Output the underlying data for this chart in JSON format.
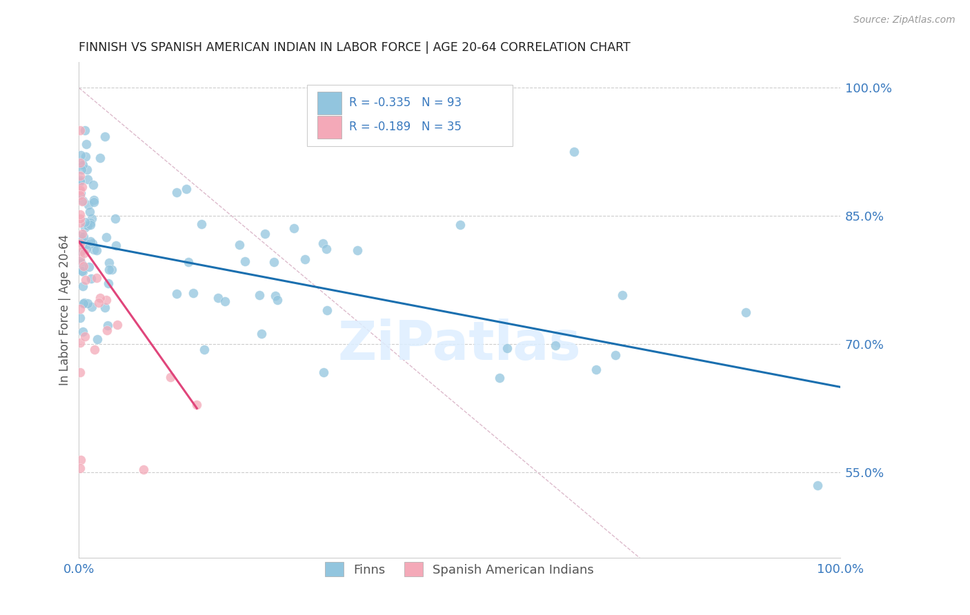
{
  "title": "FINNISH VS SPANISH AMERICAN INDIAN IN LABOR FORCE | AGE 20-64 CORRELATION CHART",
  "source": "Source: ZipAtlas.com",
  "ylabel": "In Labor Force | Age 20-64",
  "ytick_labels": [
    "55.0%",
    "70.0%",
    "85.0%",
    "100.0%"
  ],
  "ytick_values": [
    0.55,
    0.7,
    0.85,
    1.0
  ],
  "xlim": [
    0.0,
    1.0
  ],
  "ylim": [
    0.45,
    1.03
  ],
  "legend_bottom_blue": "Finns",
  "legend_bottom_pink": "Spanish American Indians",
  "blue_color": "#92c5de",
  "pink_color": "#f4a9b8",
  "blue_line_color": "#1a6faf",
  "pink_line_color": "#e0457b",
  "ref_line_color": "#ddbbcc",
  "watermark": "ZiPatlas",
  "blue_R": -0.335,
  "blue_N": 93,
  "pink_R": -0.189,
  "pink_N": 35,
  "blue_line_x": [
    0.0,
    1.0
  ],
  "blue_line_y": [
    0.82,
    0.65
  ],
  "pink_line_x": [
    0.0,
    0.155
  ],
  "pink_line_y": [
    0.82,
    0.625
  ],
  "ref_line_x": [
    0.0,
    0.75
  ],
  "ref_line_y": [
    1.0,
    0.44
  ],
  "grid_yticks": [
    0.55,
    0.7,
    0.85,
    1.0
  ],
  "marker_size": 100,
  "marker_alpha": 0.75
}
